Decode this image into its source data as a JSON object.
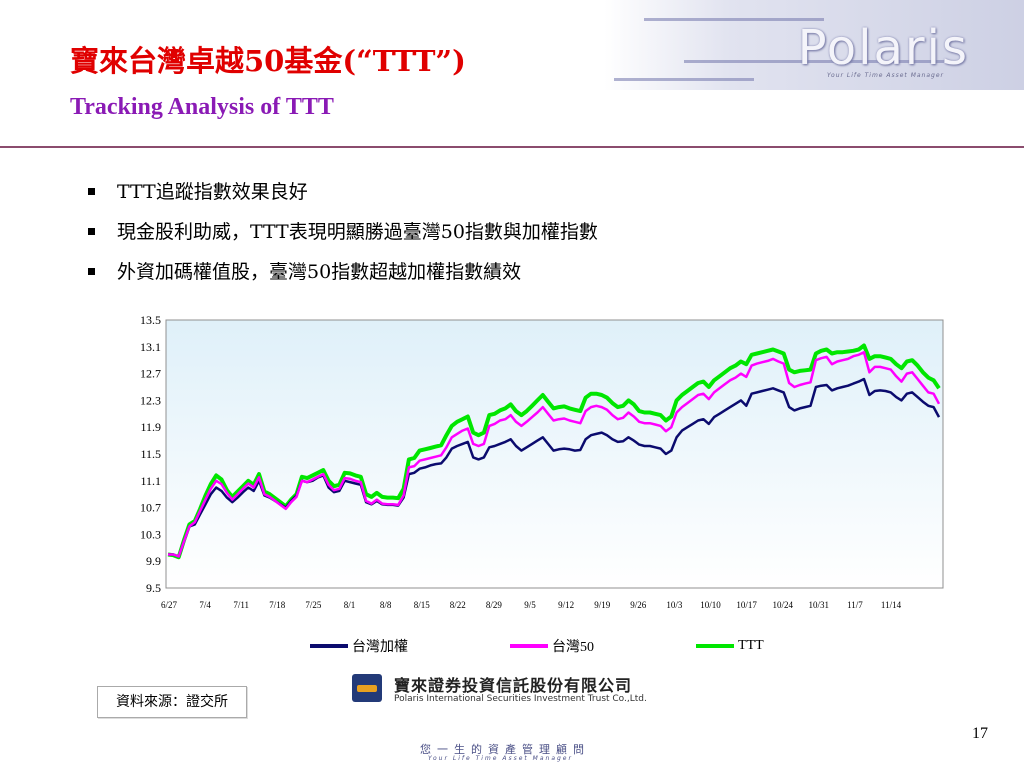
{
  "header": {
    "title_zh": "寶來台灣卓越50基金(“TTT”)",
    "title_en": "Tracking Analysis of TTT",
    "logo": "Polaris",
    "logo_tagline": "Your Life Time Asset Manager"
  },
  "bullets": [
    "TTT追蹤指數效果良好",
    "現金股利助威，TTT表現明顯勝過臺灣50指數與加權指數",
    "外資加碼權值股，臺灣50指數超越加權指數績效"
  ],
  "chart_data": {
    "type": "line",
    "title": "",
    "xlabel": "",
    "ylabel": "",
    "ylim": [
      9.5,
      13.5
    ],
    "yticks": [
      "13.5",
      "13.1",
      "12.7",
      "12.3",
      "11.9",
      "11.5",
      "11.1",
      "10.7",
      "10.3",
      "9.9",
      "9.5"
    ],
    "xticks": [
      "6/27",
      "7/4",
      "7/11",
      "7/18",
      "7/25",
      "8/1",
      "8/8",
      "8/15",
      "8/22",
      "8/29",
      "9/5",
      "9/12",
      "9/19",
      "9/26",
      "10/3",
      "10/10",
      "10/17",
      "10/24",
      "10/31",
      "11/7",
      "11/14"
    ],
    "legend_position": "bottom",
    "grid": false,
    "series": [
      {
        "name": "台灣加權",
        "color": "#0b0b6e",
        "values": [
          10.0,
          10.0,
          9.97,
          10.2,
          10.42,
          10.45,
          10.6,
          10.75,
          10.9,
          11.0,
          10.95,
          10.85,
          10.78,
          10.85,
          10.93,
          11.0,
          10.95,
          11.1,
          10.88,
          10.85,
          10.8,
          10.75,
          10.7,
          10.8,
          10.88,
          11.1,
          11.08,
          11.1,
          11.15,
          11.18,
          11.0,
          10.93,
          10.95,
          11.1,
          11.08,
          11.06,
          11.04,
          10.78,
          10.75,
          10.8,
          10.75,
          10.74,
          10.74,
          10.73,
          10.85,
          11.2,
          11.22,
          11.28,
          11.3,
          11.33,
          11.35,
          11.36,
          11.45,
          11.58,
          11.62,
          11.65,
          11.68,
          11.45,
          11.42,
          11.45,
          11.6,
          11.62,
          11.65,
          11.68,
          11.72,
          11.62,
          11.55,
          11.6,
          11.65,
          11.7,
          11.75,
          11.65,
          11.55,
          11.57,
          11.58,
          11.57,
          11.55,
          11.56,
          11.72,
          11.78,
          11.8,
          11.82,
          11.78,
          11.72,
          11.68,
          11.69,
          11.75,
          11.7,
          11.64,
          11.62,
          11.62,
          11.6,
          11.58,
          11.5,
          11.55,
          11.75,
          11.85,
          11.9,
          11.95,
          12.0,
          12.02,
          11.95,
          12.05,
          12.1,
          12.15,
          12.2,
          12.25,
          12.3,
          12.22,
          12.4,
          12.42,
          12.44,
          12.46,
          12.48,
          12.45,
          12.42,
          12.2,
          12.15,
          12.18,
          12.2,
          12.22,
          12.5,
          12.52,
          12.53,
          12.45,
          12.48,
          12.5,
          12.52,
          12.55,
          12.58,
          12.62,
          12.38,
          12.44,
          12.45,
          12.44,
          12.42,
          12.35,
          12.3,
          12.4,
          12.42,
          12.35,
          12.28,
          12.22,
          12.2,
          12.05
        ]
      },
      {
        "name": "台灣50",
        "color": "#ff00ff",
        "values": [
          10.0,
          10.0,
          9.97,
          10.2,
          10.42,
          10.48,
          10.65,
          10.82,
          10.98,
          11.1,
          11.05,
          10.92,
          10.82,
          10.9,
          10.98,
          11.06,
          11.0,
          11.15,
          10.9,
          10.86,
          10.8,
          10.74,
          10.68,
          10.78,
          10.86,
          11.1,
          11.08,
          11.12,
          11.16,
          11.2,
          11.04,
          10.96,
          10.98,
          11.14,
          11.13,
          11.1,
          11.08,
          10.8,
          10.76,
          10.82,
          10.76,
          10.75,
          10.75,
          10.74,
          10.88,
          11.3,
          11.32,
          11.4,
          11.42,
          11.44,
          11.46,
          11.48,
          11.6,
          11.75,
          11.8,
          11.85,
          11.88,
          11.65,
          11.62,
          11.65,
          11.92,
          11.95,
          12.0,
          12.02,
          12.08,
          11.98,
          11.92,
          11.98,
          12.05,
          12.12,
          12.2,
          12.1,
          12.0,
          12.02,
          12.03,
          12.0,
          11.98,
          11.96,
          12.14,
          12.2,
          12.22,
          12.2,
          12.16,
          12.08,
          12.02,
          12.04,
          12.12,
          12.06,
          11.98,
          11.96,
          11.96,
          11.94,
          11.92,
          11.84,
          11.9,
          12.12,
          12.2,
          12.26,
          12.32,
          12.38,
          12.4,
          12.32,
          12.42,
          12.48,
          12.54,
          12.6,
          12.64,
          12.7,
          12.65,
          12.82,
          12.85,
          12.87,
          12.89,
          12.92,
          12.88,
          12.85,
          12.56,
          12.5,
          12.53,
          12.55,
          12.57,
          12.9,
          12.93,
          12.95,
          12.84,
          12.88,
          12.9,
          12.92,
          12.96,
          12.98,
          13.02,
          12.72,
          12.8,
          12.8,
          12.78,
          12.76,
          12.66,
          12.58,
          12.7,
          12.72,
          12.62,
          12.52,
          12.42,
          12.4,
          12.25
        ]
      },
      {
        "name": "TTT",
        "color": "#00e600",
        "values": [
          10.0,
          9.99,
          9.96,
          10.22,
          10.45,
          10.5,
          10.68,
          10.88,
          11.05,
          11.18,
          11.12,
          10.96,
          10.86,
          10.94,
          11.02,
          11.1,
          11.04,
          11.2,
          10.94,
          10.9,
          10.84,
          10.78,
          10.72,
          10.82,
          10.9,
          11.16,
          11.14,
          11.18,
          11.22,
          11.26,
          11.1,
          11.02,
          11.04,
          11.22,
          11.21,
          11.18,
          11.16,
          10.9,
          10.86,
          10.92,
          10.86,
          10.85,
          10.85,
          10.84,
          10.98,
          11.42,
          11.44,
          11.55,
          11.57,
          11.59,
          11.61,
          11.63,
          11.78,
          11.92,
          11.98,
          12.02,
          12.06,
          11.82,
          11.78,
          11.82,
          12.08,
          12.1,
          12.15,
          12.18,
          12.24,
          12.14,
          12.08,
          12.14,
          12.22,
          12.3,
          12.38,
          12.28,
          12.18,
          12.2,
          12.21,
          12.18,
          12.16,
          12.14,
          12.34,
          12.4,
          12.4,
          12.38,
          12.34,
          12.26,
          12.2,
          12.22,
          12.3,
          12.24,
          12.14,
          12.12,
          12.12,
          12.1,
          12.08,
          12.0,
          12.06,
          12.3,
          12.38,
          12.44,
          12.5,
          12.56,
          12.58,
          12.5,
          12.6,
          12.66,
          12.72,
          12.78,
          12.82,
          12.88,
          12.84,
          12.98,
          13.0,
          13.02,
          13.04,
          13.06,
          13.03,
          13.0,
          12.76,
          12.72,
          12.74,
          12.75,
          12.76,
          13.0,
          13.04,
          13.06,
          13.0,
          13.02,
          13.02,
          13.03,
          13.04,
          13.06,
          13.12,
          12.92,
          12.96,
          12.96,
          12.94,
          12.92,
          12.84,
          12.78,
          12.88,
          12.9,
          12.82,
          12.72,
          12.64,
          12.6,
          12.48
        ]
      }
    ]
  },
  "source_box": "資料來源：證交所",
  "company": {
    "name_zh": "寶來證券投資信託股份有限公司",
    "name_en": "Polaris International Securities Investment Trust Co.,Ltd."
  },
  "page_number": "17",
  "footer": {
    "slogan": "您一生的資產管理顧問",
    "sub": "Your Life Time Asset Manager"
  }
}
